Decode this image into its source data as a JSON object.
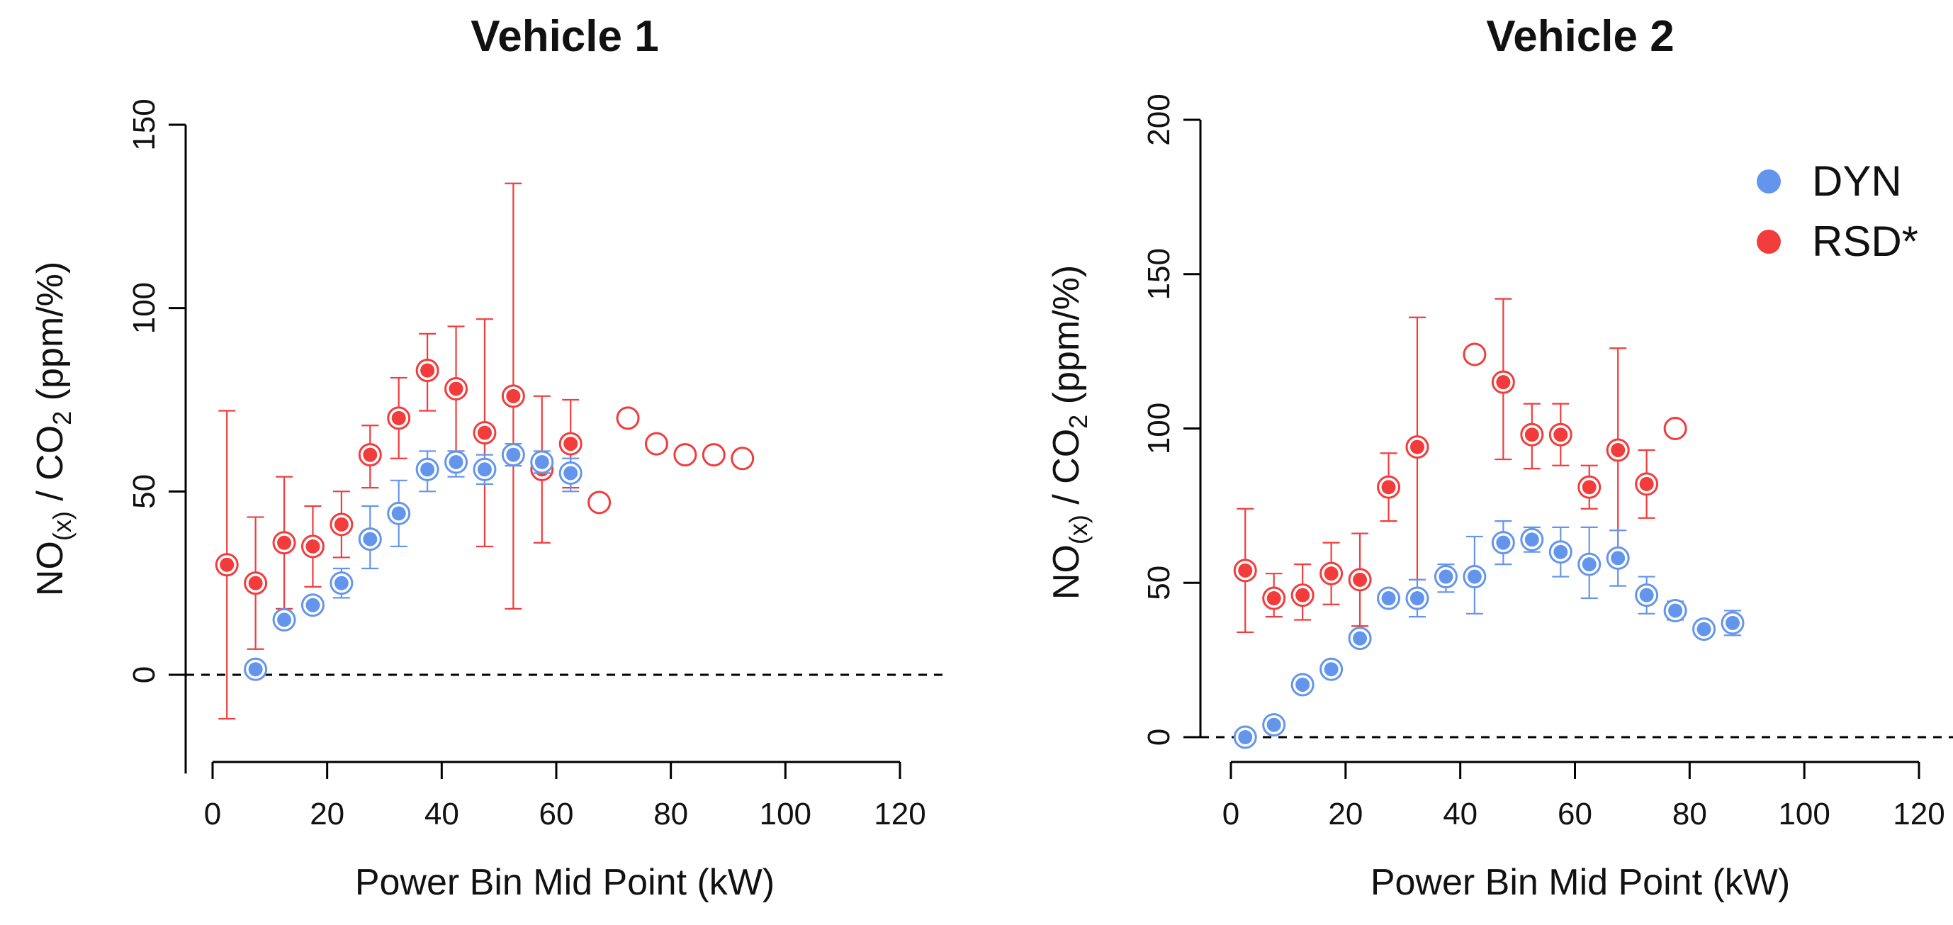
{
  "colors": {
    "dyn": "#6495ED",
    "rsd": "#F23C3C",
    "axis": "#000000"
  },
  "chart_data": [
    {
      "type": "scatter",
      "title": "Vehicle 1",
      "xlabel": "Power Bin Mid Point (kW)",
      "ylabel": {
        "pre": "NO",
        "sub": "(x)",
        "mid": " / CO",
        "sub2": "2",
        "post": " (ppm/%)"
      },
      "xlim": [
        0,
        120
      ],
      "ylim": [
        -25,
        150
      ],
      "xticks": [
        0,
        20,
        40,
        60,
        80,
        100,
        120
      ],
      "yticks": [
        0,
        50,
        100,
        150
      ],
      "zero_line": true,
      "series": [
        {
          "key": "rsd",
          "color": "#F23C3C",
          "points": [
            {
              "x": 2.5,
              "y": 30,
              "lo": -12,
              "hi": 72,
              "filled": true
            },
            {
              "x": 7.5,
              "y": 25,
              "lo": 7,
              "hi": 43,
              "filled": true
            },
            {
              "x": 12.5,
              "y": 36,
              "lo": 18,
              "hi": 54,
              "filled": true
            },
            {
              "x": 17.5,
              "y": 35,
              "lo": 24,
              "hi": 46,
              "filled": true
            },
            {
              "x": 22.5,
              "y": 41,
              "lo": 32,
              "hi": 50,
              "filled": true
            },
            {
              "x": 27.5,
              "y": 60,
              "lo": 51,
              "hi": 68,
              "filled": true
            },
            {
              "x": 32.5,
              "y": 70,
              "lo": 59,
              "hi": 81,
              "filled": true
            },
            {
              "x": 37.5,
              "y": 83,
              "lo": 72,
              "hi": 93,
              "filled": true
            },
            {
              "x": 42.5,
              "y": 78,
              "lo": 61,
              "hi": 95,
              "filled": true
            },
            {
              "x": 47.5,
              "y": 66,
              "lo": 35,
              "hi": 97,
              "filled": true
            },
            {
              "x": 52.5,
              "y": 76,
              "lo": 18,
              "hi": 134,
              "filled": true
            },
            {
              "x": 57.5,
              "y": 56,
              "lo": 36,
              "hi": 76,
              "filled": true
            },
            {
              "x": 62.5,
              "y": 63,
              "lo": 51,
              "hi": 75,
              "filled": true
            },
            {
              "x": 67.5,
              "y": 47,
              "filled": false
            },
            {
              "x": 72.5,
              "y": 70,
              "filled": false
            },
            {
              "x": 77.5,
              "y": 63,
              "filled": false
            },
            {
              "x": 82.5,
              "y": 60,
              "filled": false
            },
            {
              "x": 87.5,
              "y": 60,
              "filled": false
            },
            {
              "x": 92.5,
              "y": 59,
              "filled": false
            }
          ]
        },
        {
          "key": "dyn",
          "color": "#6495ED",
          "points": [
            {
              "x": 7.5,
              "y": 1.5,
              "lo": 0,
              "hi": 3,
              "filled": true
            },
            {
              "x": 12.5,
              "y": 15,
              "lo": 13,
              "hi": 17,
              "filled": true
            },
            {
              "x": 17.5,
              "y": 19,
              "lo": 17,
              "hi": 21,
              "filled": true
            },
            {
              "x": 22.5,
              "y": 25,
              "lo": 21,
              "hi": 29,
              "filled": true
            },
            {
              "x": 27.5,
              "y": 37,
              "lo": 29,
              "hi": 46,
              "filled": true
            },
            {
              "x": 32.5,
              "y": 44,
              "lo": 35,
              "hi": 53,
              "filled": true
            },
            {
              "x": 37.5,
              "y": 56,
              "lo": 50,
              "hi": 61,
              "filled": true
            },
            {
              "x": 42.5,
              "y": 58,
              "lo": 54,
              "hi": 61,
              "filled": true
            },
            {
              "x": 47.5,
              "y": 56,
              "lo": 52,
              "hi": 60,
              "filled": true
            },
            {
              "x": 52.5,
              "y": 60,
              "lo": 57,
              "hi": 63,
              "filled": true
            },
            {
              "x": 57.5,
              "y": 58,
              "lo": 55,
              "hi": 61,
              "filled": true
            },
            {
              "x": 62.5,
              "y": 55,
              "lo": 50,
              "hi": 59,
              "filled": true
            }
          ]
        }
      ]
    },
    {
      "type": "scatter",
      "title": "Vehicle 2",
      "xlabel": "Power Bin Mid Point (kW)",
      "ylabel": {
        "pre": "NO",
        "sub": "(x)",
        "mid": " / CO",
        "sub2": "2",
        "post": " (ppm/%)"
      },
      "xlim": [
        0,
        120
      ],
      "ylim": [
        0,
        200
      ],
      "xticks": [
        0,
        20,
        40,
        60,
        80,
        100,
        120
      ],
      "yticks": [
        0,
        50,
        100,
        150,
        200
      ],
      "zero_line": true,
      "legend": {
        "position": "top-right",
        "entries": [
          {
            "key": "dyn",
            "label": "DYN",
            "color": "#6495ED"
          },
          {
            "key": "rsd",
            "label": "RSD*",
            "color": "#F23C3C"
          }
        ]
      },
      "series": [
        {
          "key": "rsd",
          "color": "#F23C3C",
          "points": [
            {
              "x": 2.5,
              "y": 54,
              "lo": 34,
              "hi": 74,
              "filled": true
            },
            {
              "x": 7.5,
              "y": 45,
              "lo": 39,
              "hi": 53,
              "filled": true
            },
            {
              "x": 12.5,
              "y": 46,
              "lo": 38,
              "hi": 56,
              "filled": true
            },
            {
              "x": 17.5,
              "y": 53,
              "lo": 43,
              "hi": 63,
              "filled": true
            },
            {
              "x": 22.5,
              "y": 51,
              "lo": 36,
              "hi": 66,
              "filled": true
            },
            {
              "x": 27.5,
              "y": 81,
              "lo": 70,
              "hi": 92,
              "filled": true
            },
            {
              "x": 32.5,
              "y": 94,
              "lo": 51,
              "hi": 136,
              "filled": true
            },
            {
              "x": 42.5,
              "y": 124,
              "filled": false
            },
            {
              "x": 47.5,
              "y": 115,
              "lo": 90,
              "hi": 142,
              "filled": true
            },
            {
              "x": 52.5,
              "y": 98,
              "lo": 87,
              "hi": 108,
              "filled": true
            },
            {
              "x": 57.5,
              "y": 98,
              "lo": 88,
              "hi": 108,
              "filled": true
            },
            {
              "x": 62.5,
              "y": 81,
              "lo": 74,
              "hi": 88,
              "filled": true
            },
            {
              "x": 67.5,
              "y": 93,
              "lo": 58,
              "hi": 126,
              "filled": true
            },
            {
              "x": 72.5,
              "y": 82,
              "lo": 71,
              "hi": 93,
              "filled": true
            },
            {
              "x": 77.5,
              "y": 100,
              "filled": false
            }
          ]
        },
        {
          "key": "dyn",
          "color": "#6495ED",
          "points": [
            {
              "x": 2.5,
              "y": 0,
              "lo": 0,
              "hi": 0,
              "filled": true
            },
            {
              "x": 7.5,
              "y": 4,
              "lo": 3,
              "hi": 5,
              "filled": true
            },
            {
              "x": 12.5,
              "y": 17,
              "lo": 16,
              "hi": 19,
              "filled": true
            },
            {
              "x": 17.5,
              "y": 22,
              "lo": 20,
              "hi": 23,
              "filled": true
            },
            {
              "x": 22.5,
              "y": 32,
              "lo": 30,
              "hi": 34,
              "filled": true
            },
            {
              "x": 27.5,
              "y": 45,
              "lo": 43,
              "hi": 47,
              "filled": true
            },
            {
              "x": 32.5,
              "y": 45,
              "lo": 39,
              "hi": 51,
              "filled": true
            },
            {
              "x": 37.5,
              "y": 52,
              "lo": 47,
              "hi": 56,
              "filled": true
            },
            {
              "x": 42.5,
              "y": 52,
              "lo": 40,
              "hi": 65,
              "filled": true
            },
            {
              "x": 47.5,
              "y": 63,
              "lo": 56,
              "hi": 70,
              "filled": true
            },
            {
              "x": 52.5,
              "y": 64,
              "lo": 60,
              "hi": 68,
              "filled": true
            },
            {
              "x": 57.5,
              "y": 60,
              "lo": 52,
              "hi": 68,
              "filled": true
            },
            {
              "x": 62.5,
              "y": 56,
              "lo": 45,
              "hi": 68,
              "filled": true
            },
            {
              "x": 67.5,
              "y": 58,
              "lo": 49,
              "hi": 67,
              "filled": true
            },
            {
              "x": 72.5,
              "y": 46,
              "lo": 40,
              "hi": 52,
              "filled": true
            },
            {
              "x": 77.5,
              "y": 41,
              "lo": 38,
              "hi": 44,
              "filled": true
            },
            {
              "x": 82.5,
              "y": 35,
              "lo": 34,
              "hi": 36,
              "filled": true
            },
            {
              "x": 87.5,
              "y": 37,
              "lo": 33,
              "hi": 41,
              "filled": true
            }
          ]
        }
      ]
    }
  ]
}
